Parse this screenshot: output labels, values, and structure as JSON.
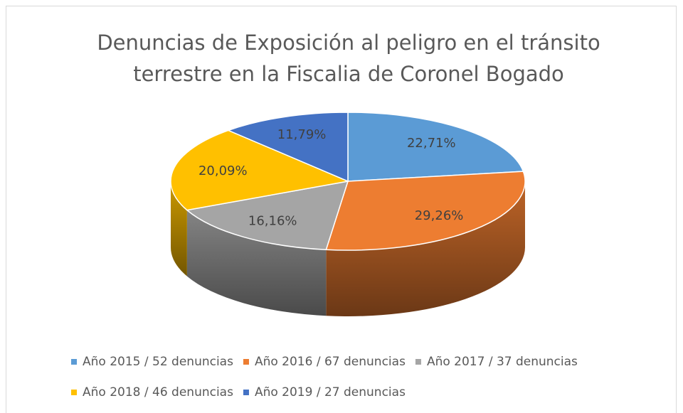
{
  "chart_data": {
    "type": "pie",
    "title": [
      "Denuncias de Exposición al peligro en el tránsito",
      "terrestre en la Fiscalia de Coronel Bogado"
    ],
    "categories": [
      "Año 2015 / 52 denuncias",
      "Año 2016 / 67 denuncias",
      "Año 2017 / 37 denuncias",
      "Año 2018 / 46 denuncias",
      "Año 2019 / 27 denuncias"
    ],
    "values": [
      22.71,
      29.26,
      16.16,
      20.09,
      11.79
    ],
    "value_labels": [
      "22,71%",
      "29,26%",
      "16,16%",
      "20,09%",
      "11,79%"
    ],
    "colors": [
      "#5b9bd5",
      "#ed7d31",
      "#a5a5a5",
      "#ffc000",
      "#4472c4"
    ],
    "legend": "bottom"
  }
}
